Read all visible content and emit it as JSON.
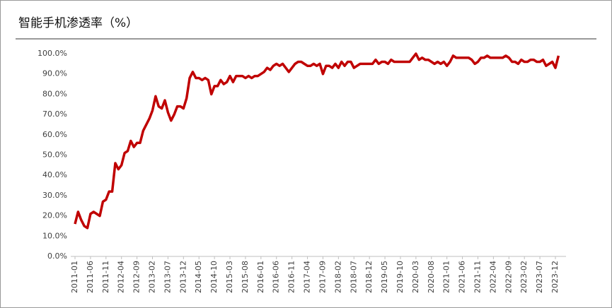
{
  "chart_data": {
    "type": "line",
    "title": "智能手机渗透率（%）",
    "categories": [
      "2011-01",
      null,
      null,
      null,
      null,
      "2011-06",
      null,
      null,
      null,
      null,
      "2011-11",
      null,
      null,
      null,
      null,
      "2012-04",
      null,
      null,
      null,
      null,
      "2012-09",
      null,
      null,
      null,
      null,
      "2013-02",
      null,
      null,
      null,
      null,
      "2013-07",
      null,
      null,
      null,
      null,
      "2013-12",
      null,
      null,
      null,
      null,
      "2014-05",
      null,
      null,
      null,
      null,
      "2014-10",
      null,
      null,
      null,
      null,
      "2015-03",
      null,
      null,
      null,
      null,
      "2015-08",
      null,
      null,
      null,
      null,
      "2016-01",
      null,
      null,
      null,
      null,
      "2016-06",
      null,
      null,
      null,
      null,
      "2016-11",
      null,
      null,
      null,
      null,
      "2017-04",
      null,
      null,
      null,
      null,
      "2017-09",
      null,
      null,
      null,
      null,
      "2018-02",
      null,
      null,
      null,
      null,
      "2018-07",
      null,
      null,
      null,
      null,
      "2018-12",
      null,
      null,
      null,
      null,
      "2019-05",
      null,
      null,
      null,
      null,
      "2019-10",
      null,
      null,
      null,
      null,
      "2020-03",
      null,
      null,
      null,
      null,
      "2020-08",
      null,
      null,
      null,
      null,
      "2021-01",
      null,
      null,
      null,
      null,
      "2021-06",
      null,
      null,
      null,
      null,
      "2021-11",
      null,
      null,
      null,
      null,
      "2022-04",
      null,
      null,
      null,
      null,
      "2022-09",
      null,
      null,
      null,
      null,
      "2023-02",
      null,
      null,
      null,
      null,
      "2023-07",
      null,
      null,
      null,
      null,
      "2023-12",
      null
    ],
    "values": [
      16,
      22,
      18,
      15,
      14,
      21,
      22,
      21,
      20,
      27,
      28,
      32,
      32,
      46,
      43,
      45,
      51,
      52,
      57,
      54,
      56,
      56,
      62,
      65,
      68,
      72,
      79,
      74,
      73,
      77,
      71,
      67,
      70,
      74,
      74,
      73,
      78,
      88,
      91,
      88,
      88,
      87,
      88,
      87,
      80,
      84,
      84,
      87,
      85,
      86,
      89,
      86,
      89,
      89,
      89,
      88,
      89,
      88,
      89,
      89,
      90,
      91,
      93,
      92,
      94,
      95,
      94,
      95,
      93,
      91,
      93,
      95,
      96,
      96,
      95,
      94,
      94,
      95,
      94,
      95,
      90,
      94,
      94,
      93,
      95,
      93,
      96,
      94,
      96,
      96,
      93,
      94,
      95,
      95,
      95,
      95,
      95,
      97,
      95,
      96,
      96,
      95,
      97,
      96,
      96,
      96,
      96,
      96,
      96,
      98,
      100,
      97,
      98,
      97,
      97,
      96,
      95,
      96,
      95,
      96,
      94,
      96,
      99,
      98,
      98,
      98,
      98,
      98,
      97,
      95,
      96,
      98,
      98,
      99,
      98,
      98,
      98,
      98,
      98,
      99,
      98,
      96,
      96,
      95,
      97,
      96,
      96,
      97,
      97,
      96,
      96,
      97,
      94,
      95,
      96,
      93,
      99
    ],
    "color": "#c00000",
    "ylim": [
      0,
      100
    ],
    "yticks": [
      {
        "value": 0,
        "label": "0.0%"
      },
      {
        "value": 10,
        "label": "10.0%"
      },
      {
        "value": 20,
        "label": "20.0%"
      },
      {
        "value": 30,
        "label": "30.0%"
      },
      {
        "value": 40,
        "label": "40.0%"
      },
      {
        "value": 50,
        "label": "50.0%"
      },
      {
        "value": 60,
        "label": "60.0%"
      },
      {
        "value": 70,
        "label": "70.0%"
      },
      {
        "value": 80,
        "label": "80.0%"
      },
      {
        "value": 90,
        "label": "90.0%"
      },
      {
        "value": 100,
        "label": "100.0%"
      }
    ],
    "grid": false
  }
}
